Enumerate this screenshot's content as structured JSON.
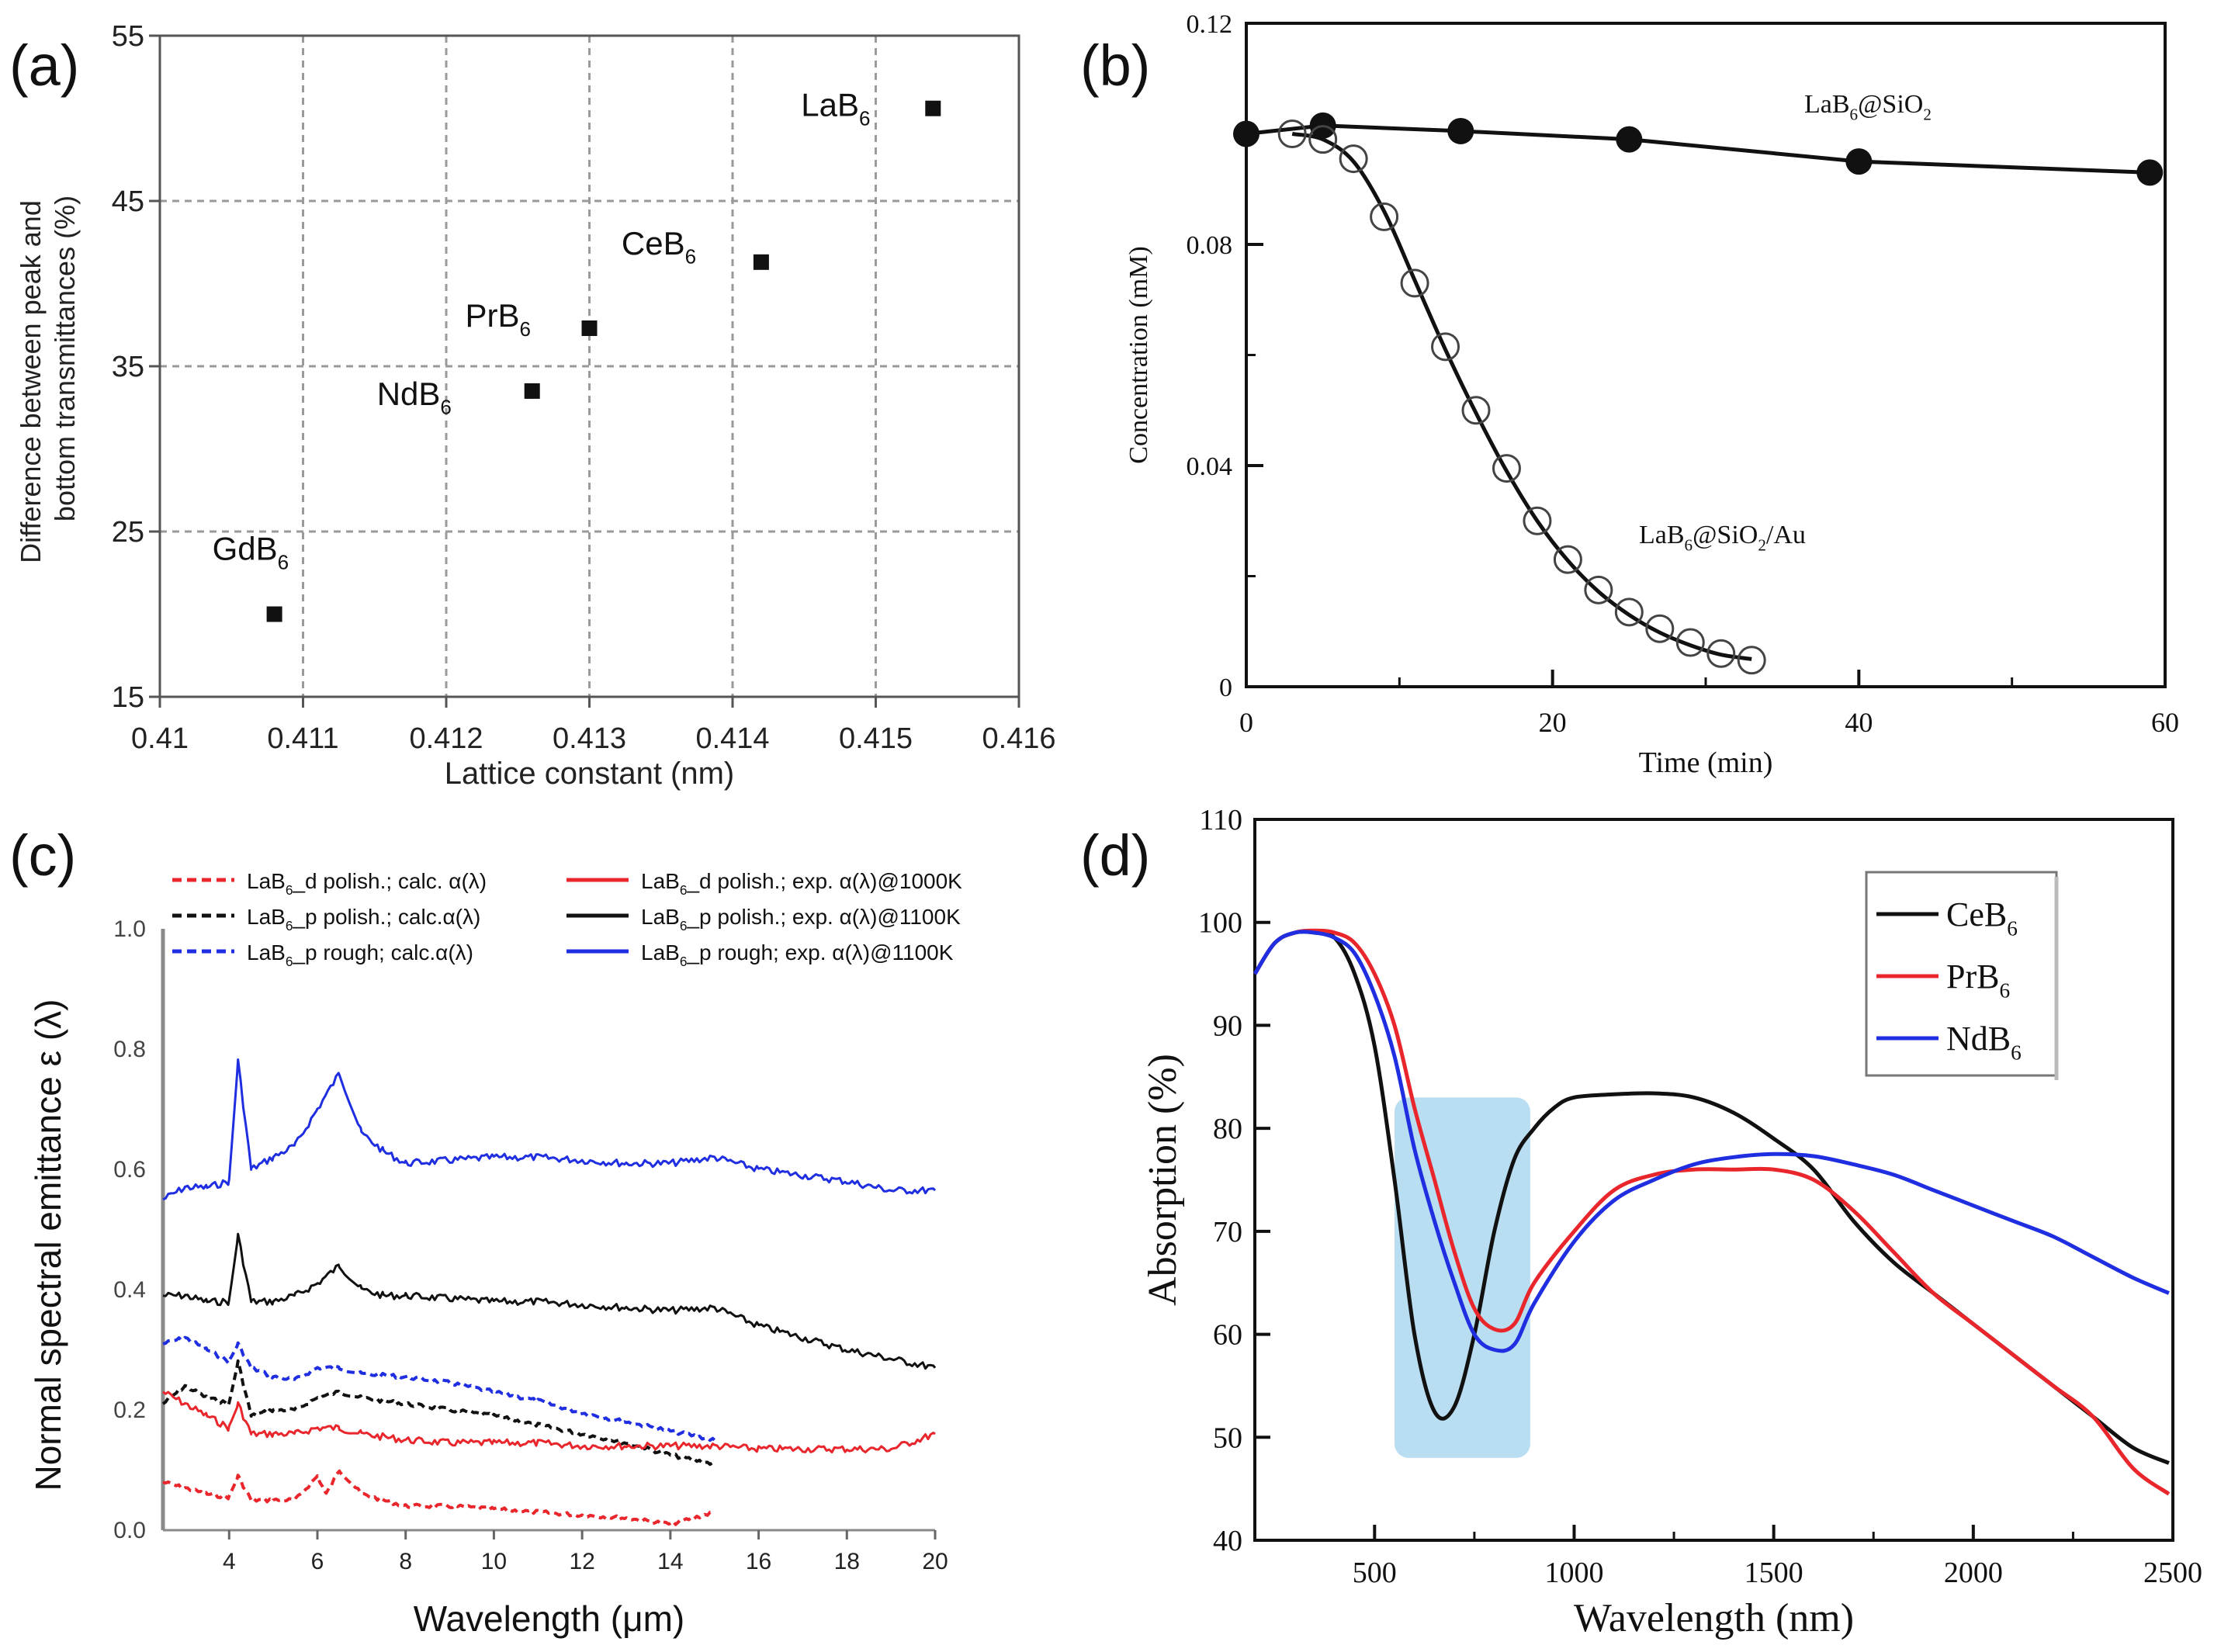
{
  "chart_data": [
    {
      "panel": "(a)",
      "type": "scatter",
      "xlabel": "Lattice constant (nm)",
      "ylabel_line1": "Difference between peak and",
      "ylabel_line2": "bottom transmittances  (%)",
      "xlim": [
        0.41,
        0.416
      ],
      "ylim": [
        15,
        55
      ],
      "xticks": [
        0.41,
        0.411,
        0.412,
        0.413,
        0.414,
        0.415,
        0.416
      ],
      "xtick_labels": [
        "0.41",
        "0.411",
        "0.412",
        "0.413",
        "0.414",
        "0.415",
        "0.416"
      ],
      "yticks": [
        15,
        25,
        35,
        45,
        55
      ],
      "ytick_labels": [
        "15",
        "25",
        "35",
        "45",
        "55"
      ],
      "grid": true,
      "points": [
        {
          "name": "GdB",
          "sub": "6",
          "x": 0.4108,
          "y": 20.0
        },
        {
          "name": "NdB",
          "sub": "6",
          "x": 0.4126,
          "y": 33.5
        },
        {
          "name": "PrB",
          "sub": "6",
          "x": 0.413,
          "y": 37.3
        },
        {
          "name": "CeB",
          "sub": "6",
          "x": 0.4142,
          "y": 41.3
        },
        {
          "name": "LaB",
          "sub": "6",
          "x": 0.4154,
          "y": 50.6
        }
      ]
    },
    {
      "panel": "(b)",
      "type": "line",
      "xlabel": "Time (min)",
      "ylabel": "Concentration (mM)",
      "xlim": [
        0,
        60
      ],
      "ylim": [
        0,
        0.12
      ],
      "xticks": [
        0,
        20,
        40,
        60
      ],
      "xtick_labels": [
        "0",
        "20",
        "40",
        "60"
      ],
      "yticks": [
        0,
        0.04,
        0.08,
        0.12
      ],
      "ytick_labels": [
        "0",
        "0.04",
        "0.08",
        "0.12"
      ],
      "grid": false,
      "series": [
        {
          "name": "LaB6@SiO2",
          "label_main": "LaB",
          "label_sub": "6",
          "label_rest": "@SiO",
          "label_sub2": "2",
          "label_tail": "",
          "marker": "filled-circle",
          "x": [
            0,
            5,
            14,
            25,
            40,
            59
          ],
          "y": [
            0.1,
            0.1015,
            0.1005,
            0.099,
            0.095,
            0.093
          ]
        },
        {
          "name": "LaB6@SiO2/Au",
          "label_main": "LaB",
          "label_sub": "6",
          "label_rest": "@SiO",
          "label_sub2": "2",
          "label_tail": "/Au",
          "marker": "open-circle",
          "x": [
            3,
            5,
            7,
            9,
            11,
            13,
            15,
            17,
            19,
            21,
            23,
            25,
            27,
            29,
            31,
            33
          ],
          "y": [
            0.1,
            0.099,
            0.0955,
            0.085,
            0.073,
            0.0615,
            0.05,
            0.0395,
            0.03,
            0.023,
            0.0175,
            0.0135,
            0.0105,
            0.008,
            0.006,
            0.0048
          ]
        }
      ]
    },
    {
      "panel": "(c)",
      "type": "line",
      "xlabel_main": "Wavelength (",
      "xlabel_unit": "μm",
      "xlabel_tail": ")",
      "ylabel": "Normal spectral emittance ε (λ)",
      "xlim": [
        2.5,
        20
      ],
      "ylim": [
        0,
        1.0
      ],
      "xticks": [
        4,
        6,
        8,
        10,
        12,
        14,
        16,
        18,
        20
      ],
      "xtick_labels": [
        "4",
        "6",
        "8",
        "10",
        "12",
        "14",
        "16",
        "18",
        "20"
      ],
      "yticks": [
        0,
        0.2,
        0.4,
        0.6,
        0.8,
        1.0
      ],
      "ytick_labels": [
        "0.0",
        "0.2",
        "0.4",
        "0.6",
        "0.8",
        "1.0"
      ],
      "grid": false,
      "legend": [
        {
          "main": "LaB",
          "sub": "6",
          "rest": "_d polish.; calc. α(λ)",
          "color": "#e8262c",
          "dash": true
        },
        {
          "main": "LaB",
          "sub": "6",
          "rest": "_p polish.; calc.α(λ)",
          "color": "#111111",
          "dash": true
        },
        {
          "main": "LaB",
          "sub": "6",
          "rest": "_p rough; calc.α(λ)",
          "color": "#1f2ee0",
          "dash": true
        },
        {
          "main": "LaB",
          "sub": "6",
          "rest": "_d polish.; exp. α(λ)@1000K",
          "color": "#e8262c",
          "dash": false
        },
        {
          "main": "LaB",
          "sub": "6",
          "rest": "_p polish.; exp. α(λ)@1100K",
          "color": "#111111",
          "dash": false
        },
        {
          "main": "LaB",
          "sub": "6",
          "rest": "_p rough; exp. α(λ)@1100K",
          "color": "#1f2ee0",
          "dash": false
        }
      ],
      "series": [
        {
          "name": "LaB6_p rough; exp. α(λ)@1100K",
          "color": "#1f2ee0",
          "dash": false,
          "x": [
            2.5,
            3,
            3.5,
            4,
            4.2,
            4.5,
            5,
            5.5,
            6,
            6.5,
            7,
            7.5,
            8,
            9,
            10,
            11,
            12,
            13,
            14,
            15,
            16,
            17,
            18,
            19,
            20
          ],
          "y": [
            0.55,
            0.57,
            0.57,
            0.58,
            0.78,
            0.6,
            0.62,
            0.64,
            0.7,
            0.76,
            0.66,
            0.63,
            0.61,
            0.615,
            0.62,
            0.62,
            0.615,
            0.61,
            0.61,
            0.62,
            0.6,
            0.59,
            0.58,
            0.565,
            0.565
          ]
        },
        {
          "name": "LaB6_p polish.; exp. α(λ)@1100K",
          "color": "#111111",
          "dash": false,
          "x": [
            2.5,
            3,
            3.5,
            4,
            4.2,
            4.5,
            5,
            5.5,
            6,
            6.5,
            7,
            7.5,
            8,
            9,
            10,
            11,
            12,
            13,
            14,
            15,
            16,
            17,
            18,
            19,
            20
          ],
          "y": [
            0.39,
            0.39,
            0.38,
            0.38,
            0.49,
            0.38,
            0.38,
            0.39,
            0.41,
            0.44,
            0.4,
            0.39,
            0.39,
            0.385,
            0.38,
            0.38,
            0.375,
            0.37,
            0.365,
            0.37,
            0.34,
            0.32,
            0.3,
            0.285,
            0.27
          ]
        },
        {
          "name": "LaB6_p rough; calc.α(λ)",
          "color": "#1f2ee0",
          "dash": true,
          "x": [
            2.5,
            3,
            3.5,
            4,
            4.2,
            4.5,
            5,
            5.5,
            6,
            6.5,
            7,
            8,
            9,
            10,
            11,
            12,
            13,
            14,
            15
          ],
          "y": [
            0.31,
            0.32,
            0.3,
            0.28,
            0.31,
            0.27,
            0.255,
            0.25,
            0.27,
            0.27,
            0.26,
            0.255,
            0.245,
            0.23,
            0.215,
            0.195,
            0.18,
            0.165,
            0.15
          ]
        },
        {
          "name": "LaB6_p polish.; calc.α(λ)",
          "color": "#111111",
          "dash": true,
          "x": [
            2.5,
            3,
            3.5,
            4,
            4.2,
            4.5,
            5,
            5.5,
            6,
            6.5,
            7,
            8,
            9,
            10,
            11,
            12,
            13,
            14,
            15
          ],
          "y": [
            0.21,
            0.24,
            0.22,
            0.21,
            0.28,
            0.19,
            0.2,
            0.2,
            0.22,
            0.23,
            0.22,
            0.21,
            0.2,
            0.19,
            0.175,
            0.16,
            0.145,
            0.125,
            0.11
          ]
        },
        {
          "name": "LaB6_d polish.; exp. α(λ)@1000K",
          "color": "#e8262c",
          "dash": false,
          "x": [
            2.5,
            3,
            3.5,
            4,
            4.2,
            4.5,
            5,
            5.5,
            6,
            6.5,
            7,
            8,
            9,
            10,
            11,
            12,
            13,
            14,
            15,
            16,
            17,
            18,
            19,
            20
          ],
          "y": [
            0.23,
            0.21,
            0.19,
            0.17,
            0.21,
            0.16,
            0.16,
            0.16,
            0.17,
            0.17,
            0.16,
            0.15,
            0.145,
            0.145,
            0.145,
            0.14,
            0.14,
            0.14,
            0.14,
            0.135,
            0.135,
            0.135,
            0.135,
            0.16
          ]
        },
        {
          "name": "LaB6_d polish.; calc. α(λ)",
          "color": "#e8262c",
          "dash": true,
          "x": [
            2.5,
            3,
            3.5,
            4,
            4.2,
            4.5,
            5,
            5.5,
            6,
            6.2,
            6.5,
            7,
            8,
            9,
            10,
            11,
            12,
            13,
            14,
            15
          ],
          "y": [
            0.08,
            0.07,
            0.06,
            0.055,
            0.09,
            0.05,
            0.05,
            0.05,
            0.09,
            0.06,
            0.1,
            0.06,
            0.04,
            0.04,
            0.035,
            0.03,
            0.025,
            0.02,
            0.01,
            0.03
          ]
        }
      ]
    },
    {
      "panel": "(d)",
      "type": "line",
      "xlabel": "Wavelength (nm)",
      "ylabel": "Absorption (%)",
      "xlim": [
        200,
        2500
      ],
      "ylim": [
        40,
        110
      ],
      "xticks": [
        500,
        1000,
        1500,
        2000,
        2500
      ],
      "xtick_labels": [
        "500",
        "1000",
        "1500",
        "2000",
        "2500"
      ],
      "yticks": [
        40,
        50,
        60,
        70,
        80,
        90,
        100,
        110
      ],
      "ytick_labels": [
        "40",
        "50",
        "60",
        "70",
        "80",
        "90",
        "100",
        "110"
      ],
      "grid": false,
      "highlight_region": {
        "x": [
          550,
          890
        ],
        "y": [
          48,
          83
        ],
        "color": "#aed8ef"
      },
      "legend": [
        {
          "main": "CeB",
          "sub": "6",
          "color": "#111111"
        },
        {
          "main": "PrB",
          "sub": "6",
          "color": "#e8262c"
        },
        {
          "main": "NdB",
          "sub": "6",
          "color": "#1f2ee0"
        }
      ],
      "series": [
        {
          "name": "CeB6",
          "color": "#111111",
          "x": [
            200,
            250,
            300,
            350,
            400,
            450,
            500,
            550,
            600,
            650,
            700,
            750,
            800,
            850,
            900,
            950,
            1000,
            1100,
            1200,
            1300,
            1400,
            1500,
            1600,
            1700,
            1800,
            1900,
            2000,
            2100,
            2200,
            2300,
            2400,
            2490
          ],
          "y": [
            95,
            98,
            99,
            99,
            98.5,
            95,
            88,
            75,
            60,
            52.5,
            53,
            60,
            70,
            77,
            80,
            82,
            83,
            83.3,
            83.4,
            83,
            81.5,
            79,
            76,
            71,
            67,
            64,
            61,
            58,
            55,
            52,
            49,
            47.5
          ]
        },
        {
          "name": "PrB6",
          "color": "#e8262c",
          "x": [
            200,
            250,
            300,
            350,
            400,
            450,
            500,
            550,
            600,
            650,
            700,
            750,
            800,
            850,
            900,
            1000,
            1100,
            1200,
            1300,
            1400,
            1500,
            1600,
            1700,
            1800,
            1900,
            2000,
            2100,
            2200,
            2300,
            2400,
            2490
          ],
          "y": [
            95,
            98,
            99,
            99.2,
            99,
            98,
            95,
            90,
            82,
            75,
            68,
            62.5,
            60.5,
            61,
            65,
            70,
            74,
            75.5,
            76,
            76,
            76,
            75,
            72,
            68,
            64,
            61,
            58,
            55,
            52,
            47,
            44.5
          ]
        },
        {
          "name": "NdB6",
          "color": "#1f2ee0",
          "x": [
            200,
            250,
            300,
            350,
            400,
            450,
            500,
            550,
            600,
            650,
            700,
            750,
            800,
            850,
            900,
            1000,
            1100,
            1200,
            1300,
            1400,
            1500,
            1600,
            1700,
            1800,
            1900,
            2000,
            2100,
            2200,
            2300,
            2400,
            2490
          ],
          "y": [
            95,
            98,
            99,
            99,
            98.5,
            97,
            93,
            87,
            78,
            71,
            65,
            60,
            58.5,
            59,
            63,
            69,
            73,
            75,
            76.5,
            77.2,
            77.5,
            77.3,
            76.5,
            75.5,
            74,
            72.5,
            71,
            69.5,
            67.5,
            65.5,
            64
          ]
        }
      ]
    }
  ],
  "panel_labels": [
    "(a)",
    "(b)",
    "(c)",
    "(d)"
  ]
}
